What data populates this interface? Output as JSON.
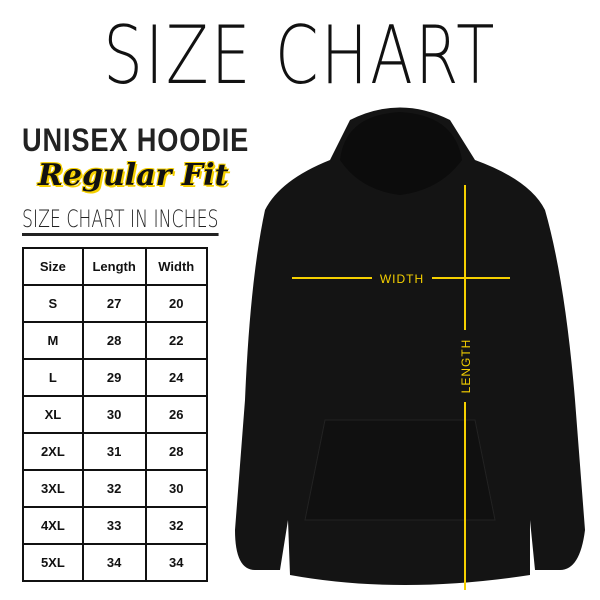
{
  "title": "SIZE CHART",
  "product": "UNISEX HOODIE",
  "fit": "Regular Fit",
  "unit_label": "SIZE CHART IN INCHES",
  "table": {
    "headers": [
      "Size",
      "Length",
      "Width"
    ],
    "rows": [
      [
        "S",
        "27",
        "20"
      ],
      [
        "M",
        "28",
        "22"
      ],
      [
        "L",
        "29",
        "24"
      ],
      [
        "XL",
        "30",
        "26"
      ],
      [
        "2XL",
        "31",
        "28"
      ],
      [
        "3XL",
        "32",
        "30"
      ],
      [
        "4XL",
        "33",
        "32"
      ],
      [
        "5XL",
        "34",
        "34"
      ]
    ]
  },
  "measurements": {
    "width_label": "WIDTH",
    "length_label": "LENGTH"
  },
  "colors": {
    "garment": "#141414",
    "measure_line": "#f5d000"
  }
}
